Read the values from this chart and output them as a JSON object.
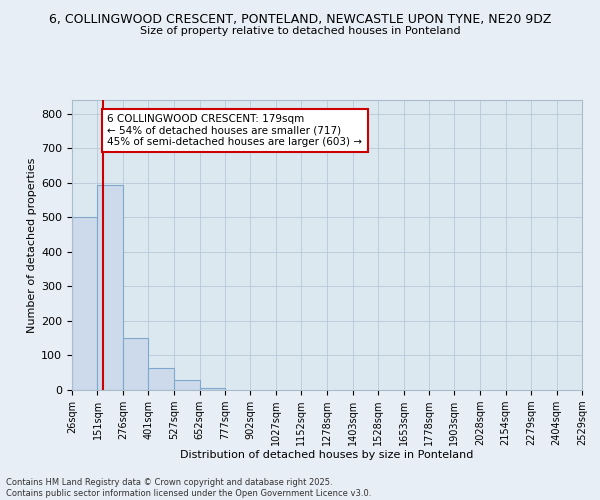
{
  "title_line1": "6, COLLINGWOOD CRESCENT, PONTELAND, NEWCASTLE UPON TYNE, NE20 9DZ",
  "title_line2": "Size of property relative to detached houses in Ponteland",
  "xlabel": "Distribution of detached houses by size in Ponteland",
  "ylabel": "Number of detached properties",
  "annotation_line1": "6 COLLINGWOOD CRESCENT: 179sqm",
  "annotation_line2": "← 54% of detached houses are smaller (717)",
  "annotation_line3": "45% of semi-detached houses are larger (603) →",
  "property_size": 179,
  "bin_edges": [
    26,
    151,
    276,
    401,
    527,
    652,
    777,
    902,
    1027,
    1152,
    1278,
    1403,
    1528,
    1653,
    1778,
    1903,
    2028,
    2154,
    2279,
    2404,
    2529
  ],
  "bin_counts": [
    500,
    595,
    150,
    63,
    30,
    5,
    0,
    0,
    0,
    0,
    0,
    0,
    0,
    0,
    0,
    0,
    0,
    0,
    0,
    0
  ],
  "bar_color": "#ccdaeb",
  "bar_edge_color": "#7fa8cc",
  "red_line_color": "#cc0000",
  "annotation_box_color": "#ffffff",
  "annotation_box_edge": "#cc0000",
  "grid_color": "#b8c8d8",
  "background_color": "#dce8f0",
  "fig_background": "#e8eef5",
  "ylim": [
    0,
    840
  ],
  "yticks": [
    0,
    100,
    200,
    300,
    400,
    500,
    600,
    700,
    800
  ],
  "footer_line1": "Contains HM Land Registry data © Crown copyright and database right 2025.",
  "footer_line2": "Contains public sector information licensed under the Open Government Licence v3.0."
}
